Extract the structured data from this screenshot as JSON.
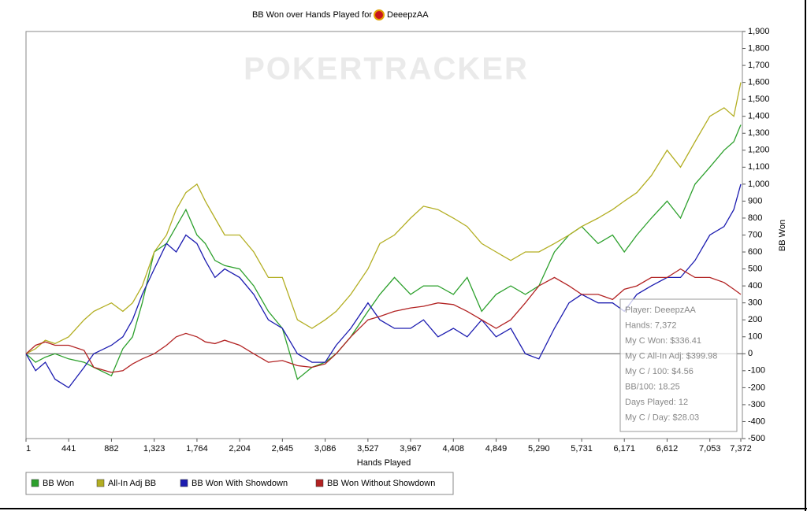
{
  "chart_data": {
    "type": "line",
    "title": "BB Won over Hands Played for",
    "player": "DeeepzAA",
    "watermark": "POKERTRACKER",
    "x_label": "Hands Played",
    "y_label": "BB Won",
    "grid": false,
    "x": [
      1,
      100,
      200,
      300,
      441,
      600,
      700,
      882,
      1000,
      1100,
      1200,
      1323,
      1450,
      1550,
      1650,
      1764,
      1850,
      1950,
      2050,
      2204,
      2350,
      2500,
      2645,
      2800,
      2950,
      3086,
      3200,
      3350,
      3527,
      3650,
      3800,
      3967,
      4100,
      4250,
      4408,
      4550,
      4700,
      4849,
      5000,
      5150,
      5290,
      5450,
      5600,
      5731,
      5900,
      6050,
      6171,
      6300,
      6450,
      6612,
      6750,
      6900,
      7053,
      7200,
      7300,
      7372
    ],
    "series": [
      {
        "name": "BB Won",
        "color": "#2ca02c",
        "values": [
          0,
          -50,
          -20,
          0,
          -30,
          -50,
          -80,
          -130,
          30,
          100,
          300,
          600,
          650,
          750,
          850,
          700,
          650,
          550,
          520,
          500,
          400,
          250,
          150,
          -150,
          -80,
          -50,
          0,
          100,
          250,
          350,
          450,
          350,
          400,
          400,
          350,
          450,
          250,
          350,
          400,
          350,
          400,
          600,
          700,
          750,
          650,
          700,
          600,
          700,
          800,
          900,
          800,
          1000,
          1100,
          1200,
          1250,
          1350
        ]
      },
      {
        "name": "All-In Adj BB",
        "color": "#b3ae22",
        "values": [
          0,
          30,
          80,
          60,
          100,
          200,
          250,
          300,
          250,
          300,
          400,
          600,
          700,
          850,
          950,
          1000,
          900,
          800,
          700,
          700,
          600,
          450,
          450,
          200,
          150,
          200,
          250,
          350,
          500,
          650,
          700,
          800,
          870,
          850,
          800,
          750,
          650,
          600,
          550,
          600,
          600,
          650,
          700,
          750,
          800,
          850,
          900,
          950,
          1050,
          1200,
          1100,
          1250,
          1400,
          1450,
          1400,
          1600
        ]
      },
      {
        "name": "BB Won With Showdown",
        "color": "#1c1cb0",
        "values": [
          0,
          -100,
          -50,
          -150,
          -200,
          -80,
          0,
          50,
          100,
          200,
          350,
          500,
          650,
          600,
          700,
          650,
          550,
          450,
          500,
          450,
          350,
          200,
          150,
          0,
          -50,
          -50,
          50,
          150,
          300,
          200,
          150,
          150,
          200,
          100,
          150,
          100,
          200,
          100,
          150,
          0,
          -30,
          150,
          300,
          350,
          300,
          300,
          250,
          350,
          400,
          450,
          450,
          550,
          700,
          750,
          850,
          1000
        ]
      },
      {
        "name": "BB Won Without Showdown",
        "color": "#b22222",
        "values": [
          0,
          50,
          70,
          50,
          50,
          20,
          -80,
          -110,
          -100,
          -60,
          -30,
          0,
          50,
          100,
          120,
          100,
          70,
          60,
          80,
          50,
          0,
          -50,
          -40,
          -70,
          -80,
          -60,
          0,
          100,
          200,
          220,
          250,
          270,
          280,
          300,
          290,
          250,
          200,
          150,
          200,
          300,
          400,
          450,
          400,
          350,
          350,
          320,
          380,
          400,
          450,
          450,
          500,
          450,
          450,
          420,
          380,
          350
        ]
      }
    ],
    "xlim": [
      1,
      7372
    ],
    "xticks": [
      1,
      441,
      882,
      {
        "value": 1323,
        "label": "1,323"
      },
      {
        "value": 1764,
        "label": "1,764"
      },
      {
        "value": 2204,
        "label": "2,204"
      },
      {
        "value": 2645,
        "label": "2,645"
      },
      {
        "value": 3086,
        "label": "3,086"
      },
      {
        "value": 3527,
        "label": "3,527"
      },
      {
        "value": 3967,
        "label": "3,967"
      },
      {
        "value": 4408,
        "label": "4,408"
      },
      {
        "value": 4849,
        "label": "4,849"
      },
      {
        "value": 5290,
        "label": "5,290"
      },
      {
        "value": 5731,
        "label": "5,731"
      },
      {
        "value": 6171,
        "label": "6,171"
      },
      {
        "value": 6612,
        "label": "6,612"
      },
      {
        "value": 7053,
        "label": "7,053"
      },
      {
        "value": 7372,
        "label": "7,372"
      }
    ],
    "ylim": [
      -500,
      1900
    ],
    "yticks": [
      -500,
      -400,
      -300,
      -200,
      -100,
      0,
      100,
      200,
      300,
      400,
      500,
      600,
      700,
      800,
      900,
      {
        "value": 1000,
        "label": "1,000"
      },
      {
        "value": 1100,
        "label": "1,100"
      },
      {
        "value": 1200,
        "label": "1,200"
      },
      {
        "value": 1300,
        "label": "1,300"
      },
      {
        "value": 1400,
        "label": "1,400"
      },
      {
        "value": 1500,
        "label": "1,500"
      },
      {
        "value": 1600,
        "label": "1,600"
      },
      {
        "value": 1700,
        "label": "1,700"
      },
      {
        "value": 1800,
        "label": "1,800"
      },
      {
        "value": 1900,
        "label": "1,900"
      }
    ],
    "stats_box": [
      "Player: DeeepzAA",
      "Hands: 7,372",
      "My C Won: $336.41",
      "My C All-In Adj: $399.98",
      "My C / 100: $4.56",
      "BB/100: 18.25",
      "Days Played: 12",
      "My C / Day: $28.03"
    ]
  }
}
